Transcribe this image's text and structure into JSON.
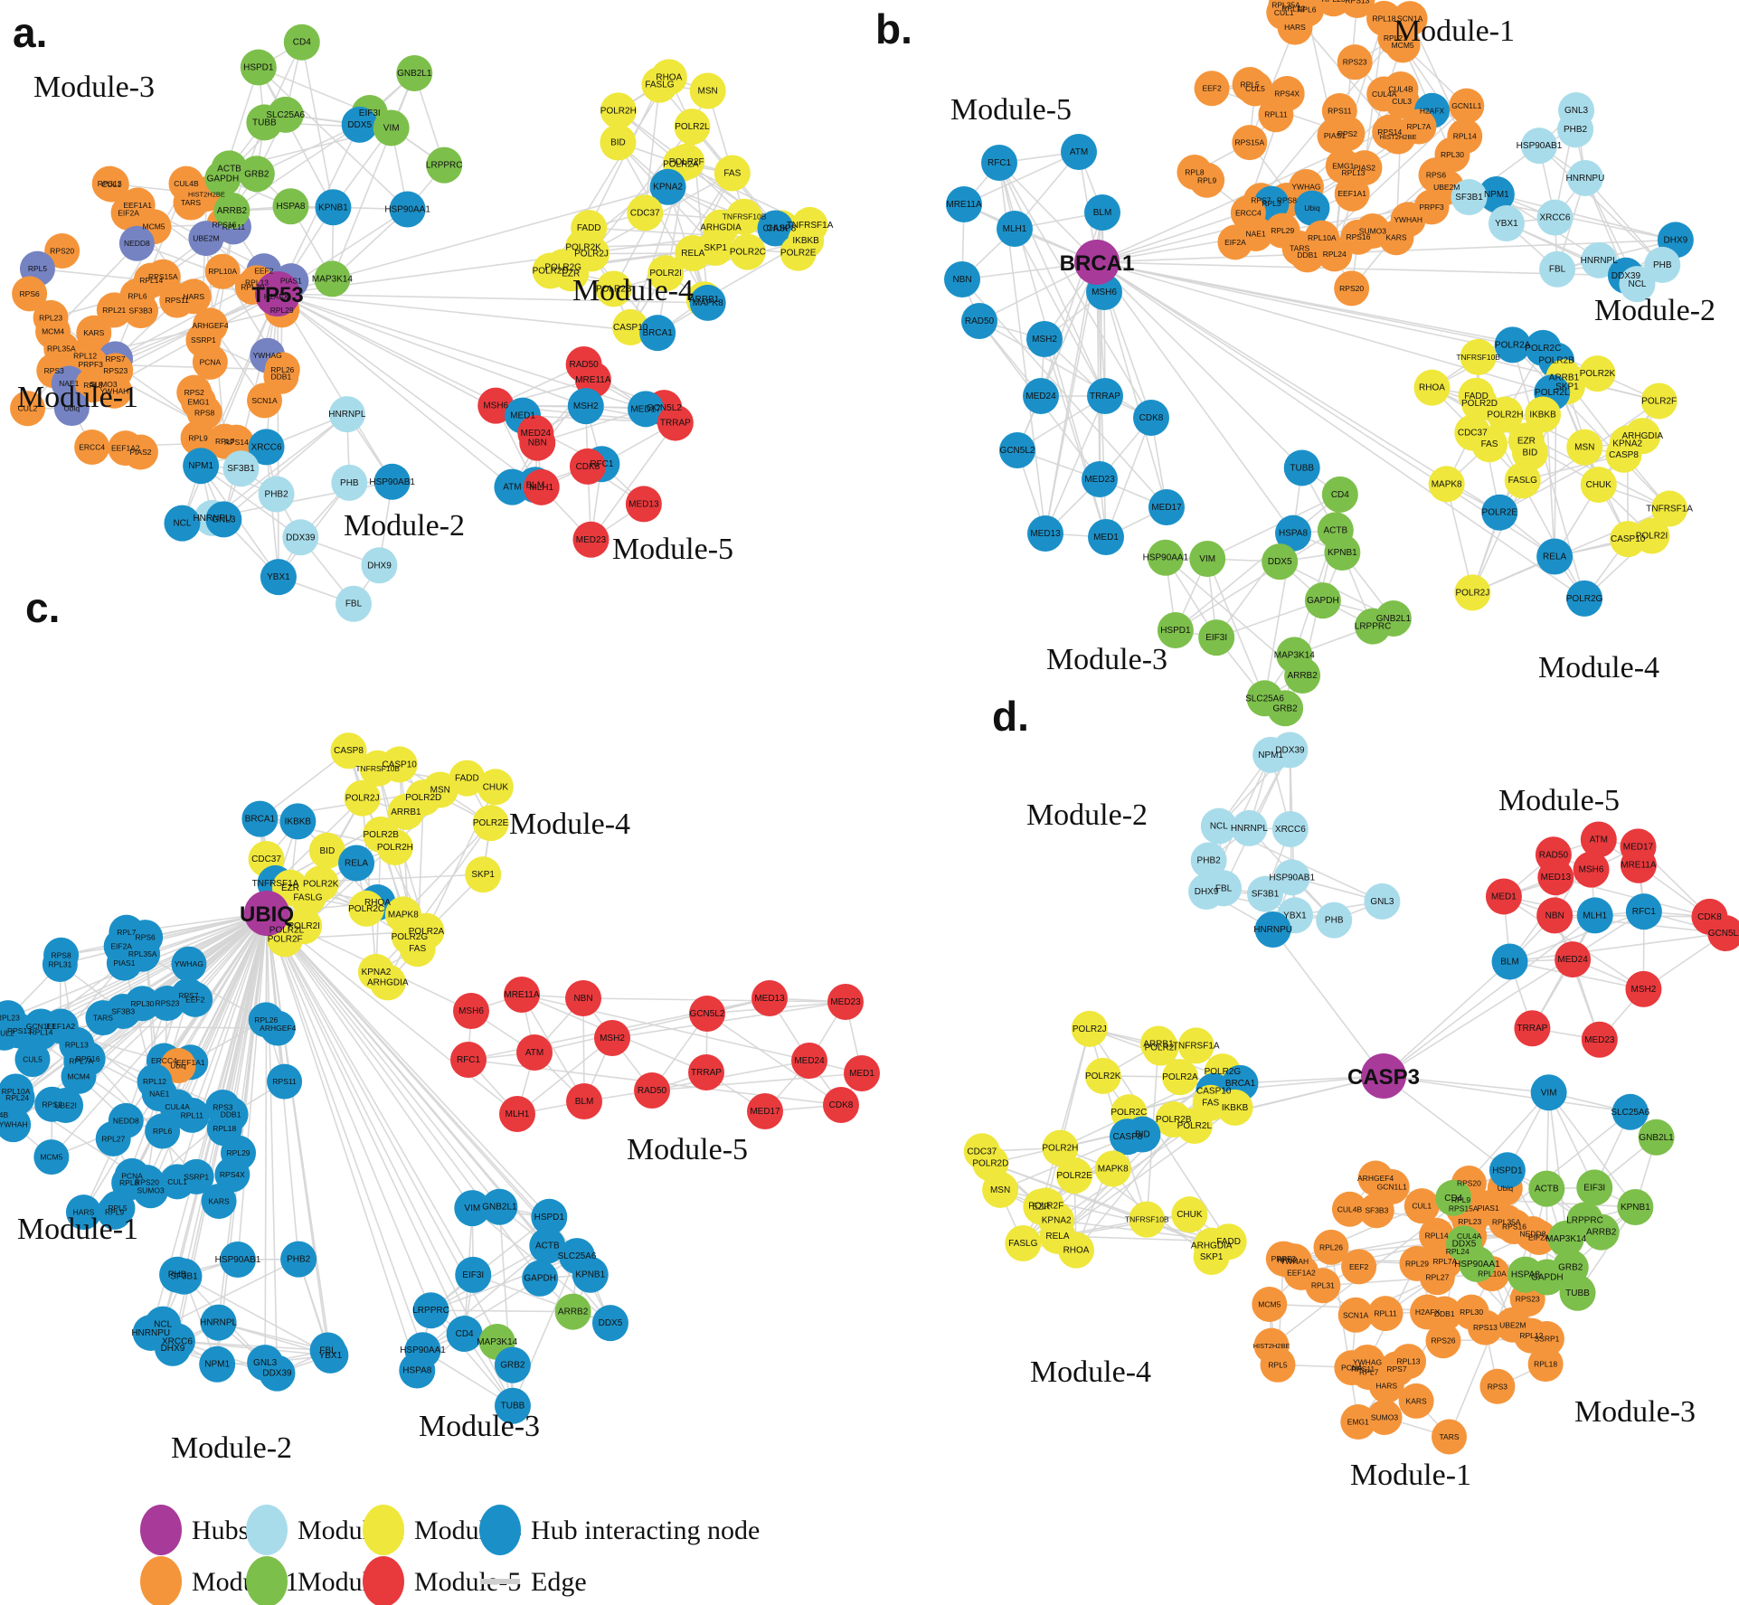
{
  "figure": {
    "encoding_note": "node prefix * = hub interacting node (blue), ^ = hub interacting node (slate-blue shade, panel a), ! = module-1 orange override; no prefix = module color",
    "colors": {
      "hub": "#a83a9a",
      "module1": "#f5953b",
      "module2": "#a9dcea",
      "module3": "#7dbf4b",
      "module4": "#efe73b",
      "module5": "#e8393d",
      "hub_interacting": "#1b90c8",
      "hub_interacting_slate": "#7583c2",
      "edge": "#d5d5d5"
    },
    "panels": [
      {
        "id": "a",
        "letter": "a.",
        "hub": {
          "label": "TP53"
        },
        "modules": [
          {
            "name": "Module-1",
            "nodes": [
              "CUL4B",
              "RPS13",
              "CUL1",
              "HIST2H2BE",
              "TARS",
              "EEF1A1",
              "EIF2A",
              "RPS16",
              "MCM5",
              "^RPL11",
              "^UBE2M",
              "^NEDD8",
              "RPS20",
              "^RPL5",
              "^EEF2",
              "RPL10A",
              "RPS15A",
              "RPL14",
              "^PIAS1",
              "RPL13",
              "RPL30",
              "RPS6",
              "RPL6",
              "HARS",
              "H2AFX",
              "RPS11",
              "RPL29",
              "RPL21",
              "SF3B3",
              "RPL23",
              "ARHGEF4",
              "MCM4",
              "KARS",
              "SSRP1",
              "RPL35A",
              "^YWHAG",
              "RPL12",
              "^RPS7",
              "PCNA",
              "PRPF3",
              "RPL26",
              "RPS3",
              "RPS23",
              "DDB1",
              "^NAE1",
              "SUMO3",
              "RPL8",
              "YWHAH",
              "RPS2",
              "SCN1A",
              "EMG1",
              "^Ubiq",
              "CUL2",
              "RPS8",
              "RPL9",
              "RPL7",
              "RPS14",
              "ERCC4",
              "EEF1A2",
              "PIAS2"
            ]
          },
          {
            "name": "Module-2",
            "nodes": [
              "HNRNPL",
              "*XRCC6",
              "*NPM1",
              "SF3B1",
              "*HSP90AB1",
              "PHB",
              "PHB2",
              "HNRNPU",
              "*GNL3",
              "*NCL",
              "DDX39",
              "DHX9",
              "*YBX1",
              "FBL"
            ]
          },
          {
            "name": "Module-3",
            "nodes": [
              "CD4",
              "HSPD1",
              "GNB2L1",
              "EIF3I",
              "SLC25A6",
              "TUBB",
              "*DDX5",
              "VIM",
              "LRPPRC",
              "ACTB",
              "GRB2",
              "GAPDH",
              "HSPA8",
              "*KPNB1",
              "*HSP90AA1",
              "ARRB2",
              "MAP3K14"
            ]
          },
          {
            "name": "Module-4",
            "nodes": [
              "RHOA",
              "FASLG",
              "MSN",
              "POLR2H",
              "POLR2L",
              "BID",
              "POLR2F",
              "POLR2A",
              "FAS",
              "*KPNA2",
              "CDC37",
              "TNFRSF10B",
              "TNFRSF1A",
              "ARHGDIA",
              "FADD",
              "CASP8",
              "*CHUK",
              "IKBKB",
              "POLR2K",
              "SKP1",
              "POLR2C",
              "POLR2E",
              "RELA",
              "POLR2J",
              "POLR2G",
              "POLR2D",
              "POLR2I",
              "EZR",
              "POLR2B",
              "ARRB1",
              "*MAPK8",
              "CASP10",
              "*BRCA1"
            ]
          },
          {
            "name": "Module-5",
            "nodes": [
              "RAD50",
              "MRE11A",
              "MSH6",
              "*MSH2",
              "GCN5L2",
              "*MED17",
              "*MED1",
              "TRRAP",
              "MED24",
              "NBN",
              "*RFC1",
              "CDK8",
              "*BLM",
              "*ATM",
              "MLH1",
              "MED13",
              "MED23"
            ]
          }
        ]
      },
      {
        "id": "b",
        "letter": "b.",
        "hub": {
          "label": "BRCA1"
        },
        "modules": [
          {
            "name": "Module-1",
            "nodes": [
              "RPL23",
              "RPS13",
              "RPL35A",
              "RPL12",
              "RPL6",
              "CUL1",
              "RPL18",
              "SCN1A",
              "HARS",
              "RPL21",
              "MCM5",
              "RPS23",
              "RPL5",
              "EEF2",
              "CUL5",
              "CUL4B",
              "RPS4X",
              "CUL4A",
              "CUL3",
              "GCN1L1",
              "*H2AFX",
              "RPS11",
              "RPL11",
              "RPL7A",
              "RPS14",
              "RPS2",
              "PIAS1",
              "RPL14",
              "HIST2H2BE",
              "RPS15A",
              "RPL30",
              "EMG1",
              "PIAS2",
              "RPL8",
              "RPL13",
              "RPS6",
              "RPL9",
              "YWHAG",
              "UBE2M",
              "EEF1A1",
              "RPS8",
              "RPS7",
              "*RPL3",
              "PRPF3",
              "*Ubiq",
              "ERCC4",
              "YWHAH",
              "RPL29",
              "SUMO3",
              "NAE1",
              "RPS16",
              "KARS",
              "RPL10A",
              "EIF2A",
              "TARS",
              "RPL24",
              "DDB1",
              "RPS20"
            ]
          },
          {
            "name": "Module-2",
            "nodes": [
              "GNL3",
              "PHB2",
              "HSP90AB1",
              "HNRNPU",
              "*NPM1",
              "SF3B1",
              "XRCC6",
              "YBX1",
              "*DHX9",
              "HNRNPL",
              "PHB",
              "FBL",
              "*DDX39",
              "NCL"
            ]
          },
          {
            "name": "Module-3",
            "nodes": [
              "*TUBB",
              "CD4",
              "ACTB",
              "*HSPA8",
              "KPNB1",
              "HSP90AA1",
              "VIM",
              "DDX5",
              "GAPDH",
              "GNB2L1",
              "LRPPRC",
              "HSPD1",
              "EIF3I",
              "MAP3K14",
              "ARRB2",
              "SLC25A6",
              "GRB2"
            ]
          },
          {
            "name": "Module-4",
            "nodes": [
              "*POLR2A",
              "*POLR2C",
              "TNFRSF10B",
              "*POLR2B",
              "POLR2K",
              "ARRB1",
              "SKP1",
              "RHOA",
              "*POLR2L",
              "FADD",
              "POLR2F",
              "POLR2D",
              "IKBKB",
              "POLR2H",
              "CDC37",
              "ARHGDIA",
              "EZR",
              "KPNA2",
              "FAS",
              "MSN",
              "BID",
              "CASP8",
              "FASLG",
              "MAPK8",
              "CHUK",
              "TNFRSF1A",
              "*POLR2E",
              "POLR2I",
              "CASP10",
              "*RELA",
              "POLR2J",
              "*POLR2G"
            ]
          },
          {
            "name": "Module-5",
            "nodes": [
              "*RFC1",
              "*ATM",
              "*MRE11A",
              "*MLH1",
              "*BLM",
              "*NBN",
              "*MSH6",
              "*RAD50",
              "*MSH2",
              "*MED24",
              "*TRRAP",
              "*CDK8",
              "*GCN5L2",
              "*MED23",
              "*MED17",
              "*MED13",
              "*MED1"
            ]
          }
        ]
      },
      {
        "id": "c",
        "letter": "c.",
        "hub": {
          "label": "UBIQ"
        },
        "modules": [
          {
            "name": "Module-1",
            "nodes": [
              "*RPL7",
              "*RPS6",
              "*EIF2A",
              "*RPL35A",
              "*RPS8",
              "*PIAS1",
              "*YWHAG",
              "*RPL31",
              "*RPS7",
              "*EEF2",
              "*RPS23",
              "*RPL30",
              "*SF3B3",
              "*RPL23",
              "*TARS",
              "*RPL26",
              "*GCN1L1",
              "*EEF1A2",
              "*ARHGEF4",
              "*RPS13",
              "*RPL14",
              "*CUL2",
              "*RPL13",
              "*RPS16",
              "*CUL5",
              "*ERCC4",
              "*RPL7A",
              "*EEF1A1",
              "!Ubiq",
              "*MCM4",
              "*RPL12",
              "*RPS11",
              "*RPL10A",
              "*NAE1",
              "*RPL24",
              "*RPS2",
              "*UBE2I",
              "*CUL4A",
              "*RPS3",
              "*DDB1",
              "*CUL4B",
              "*RPL11",
              "*NEDD8",
              "*YWHAH",
              "*RPL18",
              "*RPL6",
              "*RPL27",
              "*RPL29",
              "*MCM5",
              "*RPS4X",
              "*PCNA",
              "*SSRP1",
              "*CUL1",
              "*RPS20",
              "*RPL8",
              "*SUMO3",
              "*KARS",
              "*RPL5",
              "*RPL9",
              "*HARS"
            ]
          },
          {
            "name": "Module-2",
            "nodes": [
              "*PHB2",
              "*HSP90AB1",
              "*PHB",
              "*SF3B1",
              "*HNRNPL",
              "*NCL",
              "*HNRNPU",
              "*XRCC6",
              "*DHX9",
              "*FBL",
              "*YBX1",
              "*GNL3",
              "*NPM1",
              "*DDX39"
            ]
          },
          {
            "name": "Module-3",
            "nodes": [
              "*GNB2L1",
              "*VIM",
              "*HSPD1",
              "*ACTB",
              "*SLC25A6",
              "*KPNB1",
              "*EIF3I",
              "*GAPDH",
              "*LRPPRC",
              "ARRB2",
              "*DDX5",
              "*CD4",
              "MAP3K14",
              "*HSP90AA1",
              "*GRB2",
              "*HSPA8",
              "*TUBB"
            ]
          },
          {
            "name": "Module-4",
            "nodes": [
              "CASP8",
              "CASP10",
              "TNFRSF10B",
              "FADD",
              "CHUK",
              "MSN",
              "POLR2D",
              "POLR2J",
              "ARRB1",
              "*BRCA1",
              "*IKBKB",
              "POLR2E",
              "POLR2B",
              "POLR2H",
              "BID",
              "CDC37",
              "*RELA",
              "SKP1",
              "*TNFRSF1A",
              "POLR2K",
              "EZR",
              "FASLG",
              "*RHOA",
              "POLR2C",
              "MAPK8",
              "POLR2I",
              "POLR2L",
              "POLR2A",
              "POLR2G",
              "POLR2F",
              "FAS",
              "KPNA2",
              "ARHGDIA"
            ]
          },
          {
            "name": "Module-5",
            "nodes": [
              "MSH6",
              "MRE11A",
              "NBN",
              "RFC1",
              "ATM",
              "MSH2",
              "MLH1",
              "BLM",
              "RAD50",
              "GCN5L2",
              "TRRAP",
              "MED13",
              "MED23",
              "MED24",
              "MED1",
              "MED17",
              "CDK8"
            ]
          }
        ]
      },
      {
        "id": "d",
        "letter": "d.",
        "hub": {
          "label": "CASP3"
        },
        "modules": [
          {
            "name": "Module-1",
            "nodes": [
              "ARHGEF4",
              "RPS20",
              "GCN1L1",
              "Ubiq",
              "RPL9",
              "CUL1",
              "PIAS1",
              "RPS15A",
              "CUL4B",
              "SF3B3",
              "RPL23",
              "RPL35A",
              "RPS16",
              "NEDD8",
              "RPL14",
              "CUL4A",
              "EIF2A",
              "RPL26",
              "RPL24",
              "PRPF3",
              "RPS2",
              "YWHAH",
              "RPL7A",
              "RPL29",
              "EEF2",
              "EEF1A2",
              "RPL10A",
              "RPL27",
              "RPL31",
              "RPS23",
              "MCM5",
              "H2AFX",
              "RPL30",
              "RPL11",
              "DDB1",
              "SCN1A",
              "UBE2M",
              "RPS13",
              "RPL12",
              "SSRP1",
              "RPS26",
              "HIST2H2BE",
              "RPL13",
              "YWHAG",
              "RPL18",
              "RPL5",
              "PCNA",
              "RPS11",
              "RPS7",
              "RPL7",
              "HARS",
              "RPS3",
              "KARS",
              "SUMO3",
              "EMG1",
              "TARS"
            ]
          },
          {
            "name": "Module-2",
            "nodes": [
              "DDX39",
              "NPM1",
              "NCL",
              "HNRNPL",
              "XRCC6",
              "PHB2",
              "HSP90AB1",
              "FBL",
              "DHX9",
              "SF3B1",
              "GNL3",
              "YBX1",
              "PHB",
              "*HNRNPU"
            ]
          },
          {
            "name": "Module-3",
            "nodes": [
              "*VIM",
              "*SLC25A6",
              "GNB2L1",
              "*HSPD1",
              "EIF3I",
              "ACTB",
              "CD4",
              "KPNB1",
              "LRPPRC",
              "ARRB2",
              "MAP3K14",
              "DDX5",
              "HSP90AA1",
              "GRB2",
              "HSPA8",
              "GAPDH",
              "TUBB"
            ]
          },
          {
            "name": "Module-4",
            "nodes": [
              "POLR2J",
              "ARRB1",
              "TNFRSF1A",
              "POLR2I",
              "POLR2G",
              "POLR2K",
              "POLR2A",
              "*BRCA1",
              "*CASP10",
              "FAS",
              "IKBKB",
              "POLR2C",
              "POLR2B",
              "POLR2L",
              "*BID",
              "*CASP8",
              "POLR2H",
              "CDC37",
              "POLR2D",
              "MAPK8",
              "POLR2E",
              "MSN",
              "POLR2F",
              "EZR",
              "CHUK",
              "TNFRSF10B",
              "KPNA2",
              "RELA",
              "FADD",
              "FASLG",
              "ARHGDIA",
              "RHOA",
              "SKP1"
            ]
          },
          {
            "name": "Module-5",
            "nodes": [
              "ATM",
              "MED17",
              "RAD50",
              "MRE11A",
              "MSH6",
              "MED13",
              "MED1",
              "*RFC1",
              "*MLH1",
              "NBN",
              "CDK8",
              "GCN5L2",
              "MED24",
              "*BLM",
              "MSH2",
              "TRRAP",
              "MED23"
            ]
          }
        ]
      }
    ],
    "legend": {
      "items": [
        {
          "label": "Hubs",
          "color": "#a83a9a",
          "shape": "ellipse"
        },
        {
          "label": "Module-1",
          "color": "#f5953b",
          "shape": "ellipse"
        },
        {
          "label": "Module-2",
          "color": "#a9dcea",
          "shape": "ellipse"
        },
        {
          "label": "Module-3",
          "color": "#7dbf4b",
          "shape": "ellipse"
        },
        {
          "label": "Module-4",
          "color": "#efe73b",
          "shape": "ellipse"
        },
        {
          "label": "Module-5",
          "color": "#e8393d",
          "shape": "ellipse"
        },
        {
          "label": "Hub interacting node",
          "color": "#1b90c8",
          "shape": "ellipse"
        },
        {
          "label": "Edge",
          "color": "#cfcfcf",
          "shape": "line"
        }
      ]
    }
  }
}
